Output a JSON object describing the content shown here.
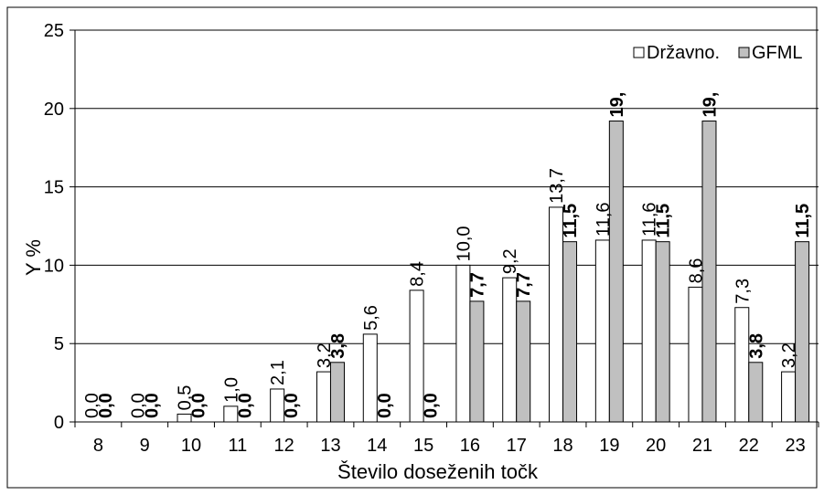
{
  "chart_data": {
    "type": "bar",
    "title": "",
    "xlabel": "Število doseženih točk",
    "ylabel": "Y %",
    "ylim": [
      0,
      25
    ],
    "yticks": [
      0,
      5,
      10,
      15,
      20,
      25
    ],
    "grid": true,
    "legend": "top-right",
    "categories": [
      "8",
      "9",
      "10",
      "11",
      "12",
      "13",
      "14",
      "15",
      "16",
      "17",
      "18",
      "19",
      "20",
      "21",
      "22",
      "23"
    ],
    "series": [
      {
        "name": "Državno.",
        "color": "#ffffff",
        "values": [
          0,
          0,
          0.5,
          1.0,
          2.1,
          3.2,
          5.6,
          8.4,
          10.0,
          9.2,
          13.7,
          11.6,
          11.6,
          8.6,
          7.3,
          3.2
        ],
        "labels": [
          "0,0",
          "0,0",
          "0,5",
          "1,0",
          "2,1",
          "3,2",
          "5,6",
          "8,4",
          "10,0",
          "9,2",
          "13,7",
          "11,6",
          "11,6",
          "8,6",
          "7,3",
          "3,2"
        ]
      },
      {
        "name": "GFML",
        "color": "#c0c0c0",
        "values": [
          0,
          0,
          0,
          0,
          0,
          3.8,
          0,
          0,
          7.7,
          7.7,
          11.5,
          19.2,
          11.5,
          19.2,
          3.8,
          11.5
        ],
        "labels": [
          "0,0",
          "0,0",
          "0,0",
          "0,0",
          "0,0",
          "3,8",
          "0,0",
          "0,0",
          "7,7",
          "7,7",
          "11,5",
          "19,",
          "11,5",
          "19,",
          "3,8",
          "11,5"
        ]
      }
    ]
  }
}
